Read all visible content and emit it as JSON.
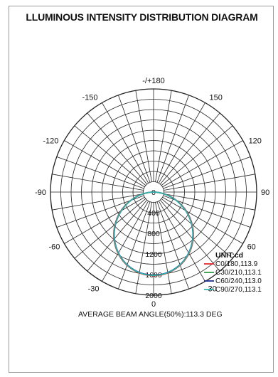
{
  "title": "LLUMINOUS INTENSITY DISTRIBUTION DIAGRAM",
  "chart_data": {
    "type": "polar",
    "unit_label": "UNIT:cd",
    "angle_labels": [
      "-/+180",
      "150",
      "120",
      "90",
      "60",
      "30",
      "0",
      "-30",
      "-60",
      "-90",
      "-120",
      "-150"
    ],
    "radial_ticks": [
      0,
      400,
      800,
      1200,
      1600,
      2000
    ],
    "radial_tick_labels": [
      "0",
      "400",
      "800",
      "1200",
      "1600",
      "2000"
    ],
    "rmax": 2000,
    "series": [
      {
        "name": "C0/180,113.9",
        "color": "#e8262a",
        "peak": 1620,
        "beam_angle": 113.9
      },
      {
        "name": "C30/210,113.1",
        "color": "#2e9e44",
        "peak": 1615,
        "beam_angle": 113.1
      },
      {
        "name": "C60/240,113.0",
        "color": "#1b2a8c",
        "peak": 1610,
        "beam_angle": 113.0
      },
      {
        "name": "C90/270,113.1",
        "color": "#2fb8b0",
        "peak": 1615,
        "beam_angle": 113.1
      }
    ],
    "caption": "AVERAGE BEAM ANGLE(50%):113.3 DEG"
  }
}
